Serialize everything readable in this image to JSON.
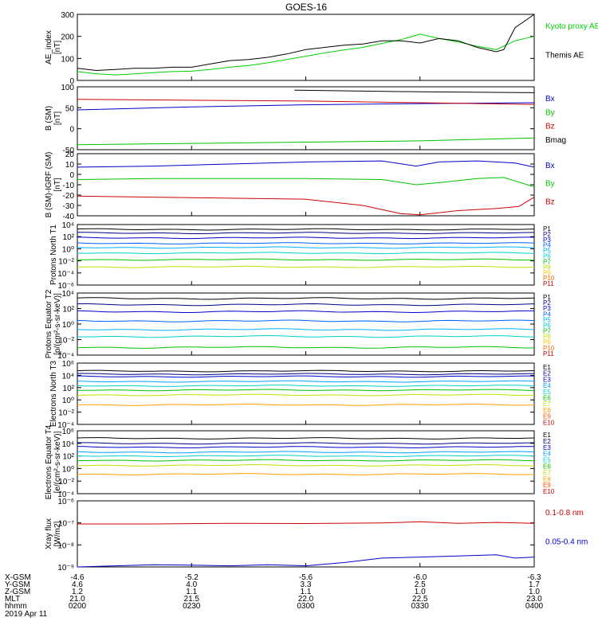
{
  "title": "GOES-16",
  "date_label": "2019 Apr 11",
  "chart_data": [
    {
      "type": "line",
      "panel": "ae-index",
      "ylabel": "AE_index [nT]",
      "ylim": [
        0,
        300
      ],
      "yticks": [
        "300",
        "200",
        "100",
        "0"
      ],
      "xlim": [
        0,
        120
      ],
      "series": [
        {
          "name": "Kyoto proxy AE",
          "color": "#00d000",
          "x": [
            0,
            5,
            10,
            15,
            20,
            25,
            30,
            35,
            40,
            45,
            50,
            55,
            60,
            65,
            70,
            75,
            80,
            85,
            90,
            95,
            100,
            105,
            110,
            115,
            120
          ],
          "y": [
            40,
            30,
            25,
            30,
            35,
            40,
            42,
            50,
            60,
            68,
            80,
            95,
            110,
            125,
            138,
            150,
            168,
            185,
            210,
            190,
            175,
            155,
            140,
            180,
            200
          ]
        },
        {
          "name": "Themis AE",
          "color": "#000000",
          "x": [
            0,
            5,
            10,
            15,
            20,
            25,
            30,
            35,
            40,
            45,
            50,
            55,
            60,
            65,
            70,
            75,
            80,
            85,
            90,
            95,
            100,
            105,
            110,
            112,
            115,
            118,
            120
          ],
          "y": [
            55,
            45,
            50,
            55,
            55,
            60,
            60,
            75,
            90,
            95,
            105,
            120,
            140,
            150,
            160,
            165,
            180,
            180,
            170,
            190,
            180,
            150,
            130,
            140,
            240,
            275,
            300
          ]
        }
      ]
    },
    {
      "type": "line",
      "panel": "b-sm",
      "ylabel": "B (SM) [nT]",
      "ylim": [
        -50,
        100
      ],
      "yticks": [
        "100",
        "50",
        "0",
        "-50"
      ],
      "xlim": [
        0,
        120
      ],
      "series": [
        {
          "name": "Bx",
          "color": "#0000cc",
          "x": [
            0,
            30,
            60,
            90,
            120
          ],
          "y": [
            45,
            52,
            57,
            60,
            62
          ]
        },
        {
          "name": "By",
          "color": "#00c000",
          "x": [
            0,
            30,
            60,
            90,
            120
          ],
          "y": [
            -38,
            -35,
            -32,
            -29,
            -22
          ]
        },
        {
          "name": "Bz",
          "color": "#cc0000",
          "x": [
            0,
            30,
            60,
            90,
            120
          ],
          "y": [
            70,
            68,
            66,
            62,
            58
          ]
        },
        {
          "name": "Bmag",
          "color": "#000000",
          "x": [
            57,
            90,
            120
          ],
          "y": [
            92,
            88,
            86
          ]
        }
      ]
    },
    {
      "type": "line",
      "panel": "b-sm-minus-igrf",
      "ylabel": "B (SM)-IGRF (SM) [nT]",
      "ylim": [
        -40,
        20
      ],
      "yticks": [
        "20",
        "10",
        "0",
        "-10",
        "-20",
        "-30",
        "-40"
      ],
      "xlim": [
        0,
        120
      ],
      "series": [
        {
          "name": "Bx",
          "color": "#0000cc",
          "x": [
            0,
            20,
            40,
            60,
            80,
            89,
            95,
            105,
            115,
            120
          ],
          "y": [
            7,
            8,
            10,
            12,
            13,
            8,
            12,
            13,
            11,
            7
          ]
        },
        {
          "name": "By",
          "color": "#00c000",
          "x": [
            0,
            20,
            40,
            60,
            80,
            89,
            95,
            105,
            112,
            120
          ],
          "y": [
            -5,
            -4,
            -4,
            -4,
            -5,
            -10,
            -8,
            -4,
            -3,
            -12
          ]
        },
        {
          "name": "Bz",
          "color": "#cc0000",
          "x": [
            0,
            20,
            40,
            60,
            75,
            85,
            90,
            100,
            110,
            116,
            120
          ],
          "y": [
            -21,
            -22,
            -23,
            -24,
            -30,
            -38,
            -39,
            -35,
            -33,
            -31,
            -22
          ]
        }
      ]
    },
    {
      "type": "line",
      "panel": "protons-north-t1",
      "ylabel": "Protons North T1",
      "scale": "log",
      "ylim": [
        -6,
        4
      ],
      "yticks": [
        "10⁴",
        "10²",
        "10⁰",
        "10⁻²",
        "10⁻⁴",
        "10⁻⁶"
      ],
      "channels": [
        "P1",
        "P2",
        "P3",
        "P4",
        "P5",
        "P6",
        "P7",
        "P8",
        "P9",
        "P10",
        "P11"
      ],
      "channel_colors": [
        "#000000",
        "#000080",
        "#0000cc",
        "#0060ff",
        "#00b0ff",
        "#00d0d0",
        "#00c000",
        "#c0e000",
        "#ffc000",
        "#ff6000",
        "#cc0000"
      ],
      "levels": [
        3.2,
        2.6,
        1.8,
        0.9,
        0.2,
        -0.7,
        -1.8,
        -3.0
      ]
    },
    {
      "type": "line",
      "panel": "protons-equator-t2",
      "ylabel": "Protons Equator T2 [p/(cm²-s-sr-keV)]",
      "scale": "log",
      "ylim": [
        -4,
        4
      ],
      "yticks": [
        "10⁴",
        "10²",
        "10⁰",
        "10⁻²",
        "10⁻⁴"
      ],
      "channels": [
        "P1",
        "P2",
        "P3",
        "P4",
        "P5",
        "P6",
        "P7",
        "P8",
        "P9",
        "P10",
        "P11"
      ],
      "channel_colors": [
        "#000000",
        "#000080",
        "#0000cc",
        "#0060ff",
        "#00b0ff",
        "#00d0d0",
        "#00c000",
        "#c0e000",
        "#ffc000",
        "#ff6000",
        "#cc0000"
      ],
      "levels": [
        3.3,
        2.5,
        1.6,
        0.4,
        -0.7,
        -1.6,
        -3.0
      ]
    },
    {
      "type": "line",
      "panel": "electrons-north-t3",
      "ylabel": "Electrons North T3",
      "scale": "log",
      "ylim": [
        -4,
        6
      ],
      "yticks": [
        "10⁶",
        "10⁴",
        "10²",
        "10⁰",
        "10⁻²",
        "10⁻⁴"
      ],
      "channels": [
        "E1",
        "E2",
        "E3",
        "E4",
        "E5",
        "E6",
        "E7",
        "E8",
        "E9",
        "E10"
      ],
      "channel_colors": [
        "#000000",
        "#000080",
        "#0000cc",
        "#00a0ff",
        "#00d0d0",
        "#00c000",
        "#c0e000",
        "#ffa000",
        "#ff5000",
        "#cc0000"
      ],
      "levels": [
        4.7,
        4.2,
        3.8,
        3.0,
        2.3,
        1.6,
        0.8,
        -0.8
      ]
    },
    {
      "type": "line",
      "panel": "electrons-equator-t4",
      "ylabel": "Electrons Equator T4 [e/(cm²-s-sr-keV)]",
      "scale": "log",
      "ylim": [
        -4,
        6
      ],
      "yticks": [
        "10⁶",
        "10⁴",
        "10²",
        "10⁰",
        "10⁻²",
        "10⁻⁴"
      ],
      "channels": [
        "E1",
        "E2",
        "E3",
        "E4",
        "E5",
        "E6",
        "E7",
        "E8",
        "E9",
        "E10"
      ],
      "channel_colors": [
        "#000000",
        "#000080",
        "#0000cc",
        "#00a0ff",
        "#00d0d0",
        "#00c000",
        "#c0e000",
        "#ffa000",
        "#ff5000",
        "#cc0000"
      ],
      "levels": [
        4.8,
        4.0,
        3.4,
        2.6,
        2.0,
        1.3,
        0.5,
        -0.9
      ]
    },
    {
      "type": "line",
      "panel": "xray-flux",
      "ylabel": "Xray flux [W/m2]",
      "scale": "log",
      "ylim": [
        -9,
        -6
      ],
      "yticks": [
        "10⁻⁶",
        "10⁻⁷",
        "10⁻⁸",
        "10⁻⁹"
      ],
      "series": [
        {
          "name": "0.1-0.8 nm",
          "color": "#cc0000",
          "x": [
            0,
            20,
            40,
            60,
            80,
            90,
            100,
            110,
            120
          ],
          "y": [
            -7.05,
            -7.05,
            -7.02,
            -7.03,
            -7.0,
            -6.95,
            -7.02,
            -6.98,
            -7.02
          ]
        },
        {
          "name": "0.05-0.4 nm",
          "color": "#0000cc",
          "x": [
            0,
            10,
            20,
            30,
            40,
            50,
            60,
            70,
            80,
            90,
            100,
            110,
            115,
            120
          ],
          "y": [
            -9.0,
            -8.95,
            -8.9,
            -8.92,
            -8.95,
            -8.9,
            -8.95,
            -8.8,
            -8.6,
            -8.55,
            -8.5,
            -8.45,
            -8.6,
            -8.55
          ]
        }
      ]
    }
  ],
  "x_axis": {
    "ticks": [
      {
        "xgsm": "-4.6",
        "ygsm": "4.6",
        "zgsm": "1.2",
        "mlt": "21.0",
        "hhmm": "0200"
      },
      {
        "xgsm": "-5.2",
        "ygsm": "4.0",
        "zgsm": "1.1",
        "mlt": "21.5",
        "hhmm": "0230"
      },
      {
        "xgsm": "-5.6",
        "ygsm": "3.3",
        "zgsm": "1.1",
        "mlt": "22.0",
        "hhmm": "0300"
      },
      {
        "xgsm": "-6.0",
        "ygsm": "2.5",
        "zgsm": "1.0",
        "mlt": "22.5",
        "hhmm": "0330"
      },
      {
        "xgsm": "-6.3",
        "ygsm": "1.7",
        "zgsm": "1.0",
        "mlt": "23.0",
        "hhmm": "0400"
      }
    ],
    "row_labels": [
      "X-GSM",
      "Y-GSM",
      "Z-GSM",
      "MLT",
      "hhmm"
    ]
  }
}
